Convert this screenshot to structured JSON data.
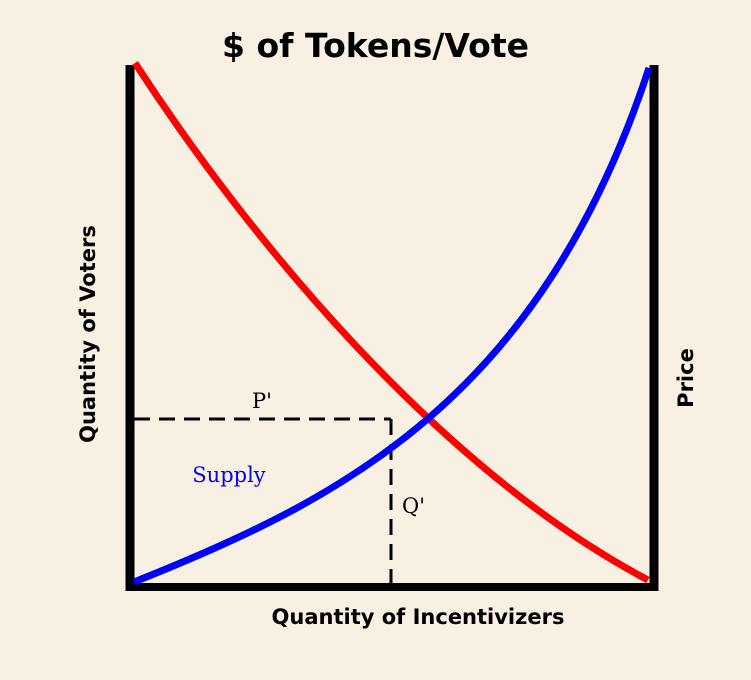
{
  "title": "$ of Tokens/Vote",
  "y_axis_left_label": "Quantity of Voters",
  "y_axis_right_label": "Price",
  "x_axis_label": "Quantity of Incentivizers",
  "curves": {
    "supply": {
      "label": "Supply",
      "color": "#0000ff"
    },
    "demand": {
      "color": "#ff0000"
    }
  },
  "equilibrium": {
    "price_label": "P'",
    "quantity_label": "Q'"
  },
  "colors": {
    "background": "#f8f0e2",
    "axes": "#000000"
  }
}
